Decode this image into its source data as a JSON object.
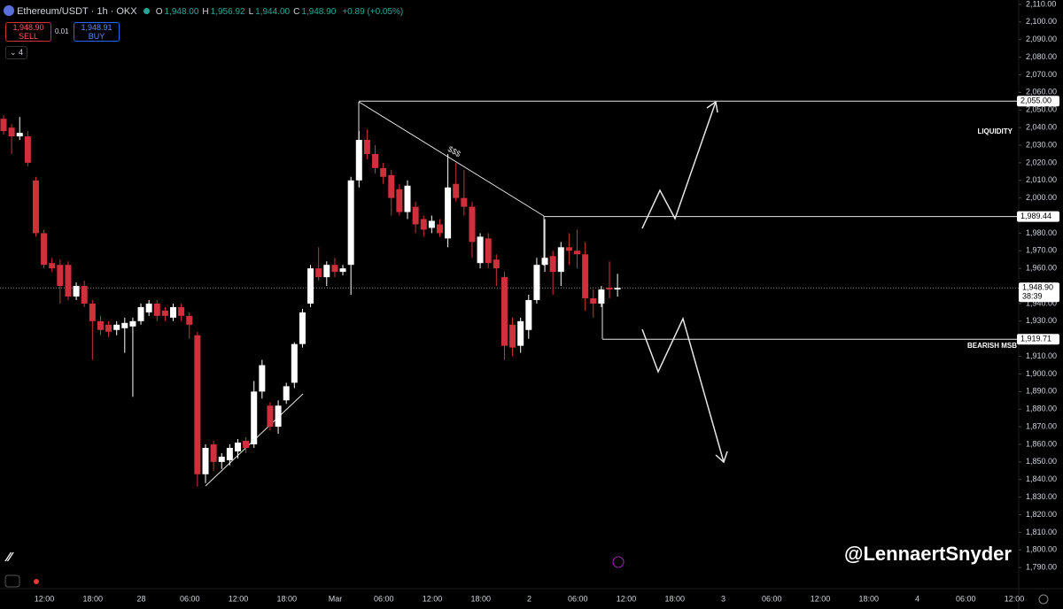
{
  "header": {
    "symbol": "Ethereum/USDT · 1h · OKX",
    "ohlc": [
      {
        "key": "O",
        "value": "1,948.00"
      },
      {
        "key": "H",
        "value": "1,956.92"
      },
      {
        "key": "L",
        "value": "1,944.00"
      },
      {
        "key": "C",
        "value": "1,948.90"
      }
    ],
    "change": "+0.89 (+0.05%)",
    "sell_price": "1,948.90",
    "sell": "SELL",
    "spread": "0.01",
    "buy_price": "1,948.91",
    "buy": "BUY",
    "indicators": "4"
  },
  "watermark": "@LennaertSnyder",
  "chart_data": {
    "type": "candlestick",
    "up_color": "#ffffff",
    "down_color": "#d0303c",
    "ylim": [
      1778,
      2112.5
    ],
    "yticks": [
      {
        "value": 1790,
        "label": "1,790.00"
      },
      {
        "value": 1800,
        "label": "1,800.00"
      },
      {
        "value": 1810,
        "label": "1,810.00"
      },
      {
        "value": 1820,
        "label": "1,820.00"
      },
      {
        "value": 1830,
        "label": "1,830.00"
      },
      {
        "value": 1840,
        "label": "1,840.00"
      },
      {
        "value": 1850,
        "label": "1,850.00"
      },
      {
        "value": 1860,
        "label": "1,860.00"
      },
      {
        "value": 1870,
        "label": "1,870.00"
      },
      {
        "value": 1880,
        "label": "1,880.00"
      },
      {
        "value": 1890,
        "label": "1,890.00"
      },
      {
        "value": 1900,
        "label": "1,900.00"
      },
      {
        "value": 1910,
        "label": "1,910.00"
      },
      {
        "value": 1920,
        "label": "1,920.00"
      },
      {
        "value": 1930,
        "label": "1,930.00"
      },
      {
        "value": 1940,
        "label": "1,940.00"
      },
      {
        "value": 1950,
        "label": "1,950.00"
      },
      {
        "value": 1960,
        "label": "1,960.00"
      },
      {
        "value": 1970,
        "label": "1,970.00"
      },
      {
        "value": 1980,
        "label": "1,980.00"
      },
      {
        "value": 1990,
        "label": "1,990.00"
      },
      {
        "value": 2000,
        "label": "2,000.00"
      },
      {
        "value": 2010,
        "label": "2,010.00"
      },
      {
        "value": 2020,
        "label": "2,020.00"
      },
      {
        "value": 2030,
        "label": "2,030.00"
      },
      {
        "value": 2040,
        "label": "2,040.00"
      },
      {
        "value": 2050,
        "label": "2,050.00"
      },
      {
        "value": 2060,
        "label": "2,060.00"
      },
      {
        "value": 2070,
        "label": "2,070.00"
      },
      {
        "value": 2080,
        "label": "2,080.00"
      },
      {
        "value": 2090,
        "label": "2,090.00"
      },
      {
        "value": 2100,
        "label": "2,100.00"
      },
      {
        "value": 2110,
        "label": "2,110.00"
      }
    ],
    "x_labels": [
      "12:00",
      "18:00",
      "28",
      "06:00",
      "12:00",
      "18:00",
      "Mar",
      "06:00",
      "12:00",
      "18:00",
      "2",
      "06:00",
      "12:00",
      "18:00",
      "3",
      "06:00",
      "12:00",
      "18:00",
      "4",
      "06:00",
      "12:00"
    ],
    "candles": [
      [
        2045,
        2047,
        2036,
        2038
      ],
      [
        2040,
        2042,
        2025,
        2035
      ],
      [
        2035,
        2046,
        2033,
        2037
      ],
      [
        2035,
        2038,
        2018,
        2020
      ],
      [
        2010,
        2012,
        1978,
        1980
      ],
      [
        1980,
        1982,
        1960,
        1962
      ],
      [
        1963,
        1966,
        1958,
        1960
      ],
      [
        1962,
        1965,
        1940,
        1950
      ],
      [
        1962,
        1964,
        1942,
        1944
      ],
      [
        1944,
        1952,
        1942,
        1950
      ],
      [
        1950,
        1953,
        1938,
        1940
      ],
      [
        1940,
        1942,
        1908,
        1930
      ],
      [
        1930,
        1933,
        1922,
        1925
      ],
      [
        1928,
        1930,
        1921,
        1924
      ],
      [
        1925,
        1930,
        1922,
        1928
      ],
      [
        1926,
        1932,
        1912,
        1929
      ],
      [
        1927,
        1932,
        1887,
        1930
      ],
      [
        1930,
        1940,
        1928,
        1938
      ],
      [
        1935,
        1942,
        1933,
        1940
      ],
      [
        1940,
        1942,
        1930,
        1933
      ],
      [
        1936,
        1938,
        1930,
        1933
      ],
      [
        1932,
        1940,
        1930,
        1938
      ],
      [
        1938,
        1940,
        1930,
        1933
      ],
      [
        1933,
        1935,
        1920,
        1928
      ],
      [
        1922,
        1924,
        1836,
        1843
      ],
      [
        1843,
        1860,
        1838,
        1858
      ],
      [
        1860,
        1862,
        1845,
        1850
      ],
      [
        1850,
        1855,
        1846,
        1853
      ],
      [
        1851,
        1860,
        1848,
        1858
      ],
      [
        1856,
        1863,
        1852,
        1861
      ],
      [
        1862,
        1864,
        1855,
        1858
      ],
      [
        1860,
        1896,
        1858,
        1890
      ],
      [
        1890,
        1908,
        1886,
        1905
      ],
      [
        1882,
        1884,
        1868,
        1870
      ],
      [
        1870,
        1885,
        1866,
        1882
      ],
      [
        1885,
        1895,
        1883,
        1893
      ],
      [
        1895,
        1918,
        1892,
        1917
      ],
      [
        1917,
        1937,
        1915,
        1935
      ],
      [
        1940,
        1962,
        1938,
        1960
      ],
      [
        1960,
        1972,
        1953,
        1955
      ],
      [
        1955,
        1964,
        1950,
        1962
      ],
      [
        1962,
        1966,
        1955,
        1958
      ],
      [
        1958,
        1962,
        1956,
        1960
      ],
      [
        1962,
        2012,
        1945,
        2010
      ],
      [
        2010,
        2038,
        2006,
        2033
      ],
      [
        2033,
        2039,
        2022,
        2025
      ],
      [
        2025,
        2030,
        2014,
        2017
      ],
      [
        2017,
        2020,
        2008,
        2012
      ],
      [
        2013,
        2016,
        1990,
        2000
      ],
      [
        2005,
        2008,
        1990,
        1992
      ],
      [
        1992,
        2010,
        1988,
        2007
      ],
      [
        1995,
        1998,
        1980,
        1985
      ],
      [
        1988,
        1990,
        1978,
        1982
      ],
      [
        1983,
        1990,
        1980,
        1987
      ],
      [
        1985,
        1988,
        1978,
        1980
      ],
      [
        1977,
        2025,
        1972,
        2006
      ],
      [
        2008,
        2020,
        1998,
        2000
      ],
      [
        2000,
        2016,
        1990,
        1995
      ],
      [
        1995,
        1998,
        1966,
        1975
      ],
      [
        1963,
        1980,
        1960,
        1978
      ],
      [
        1977,
        1980,
        1960,
        1963
      ],
      [
        1965,
        1968,
        1950,
        1960
      ],
      [
        1955,
        1958,
        1908,
        1916
      ],
      [
        1928,
        1932,
        1910,
        1915
      ],
      [
        1916,
        1932,
        1912,
        1930
      ],
      [
        1925,
        1945,
        1920,
        1942
      ],
      [
        1942,
        1966,
        1940,
        1962
      ],
      [
        1962,
        1988,
        1958,
        1966
      ],
      [
        1967,
        1970,
        1945,
        1958
      ],
      [
        1958,
        1975,
        1950,
        1972
      ],
      [
        1972,
        1980,
        1962,
        1970
      ],
      [
        1970,
        1982,
        1960,
        1968
      ],
      [
        1968,
        1975,
        1936,
        1943
      ],
      [
        1943,
        1948,
        1932,
        1940
      ],
      [
        1940,
        1950,
        1938,
        1948
      ],
      [
        1949,
        1964,
        1943,
        1948
      ],
      [
        1948,
        1956.92,
        1944,
        1948.9
      ]
    ],
    "levels": [
      {
        "value": 2055,
        "label": "2,055.00"
      },
      {
        "value": 1989.44,
        "label": "1,989.44"
      },
      {
        "value": 1919.71,
        "label": "1,919.71"
      }
    ],
    "last_price": {
      "value": 1948.9,
      "label": "1,948.90",
      "countdown": "38:39"
    },
    "annotations": [
      "LIQUIDITY",
      "BEARISH MSB",
      "$$$"
    ]
  }
}
